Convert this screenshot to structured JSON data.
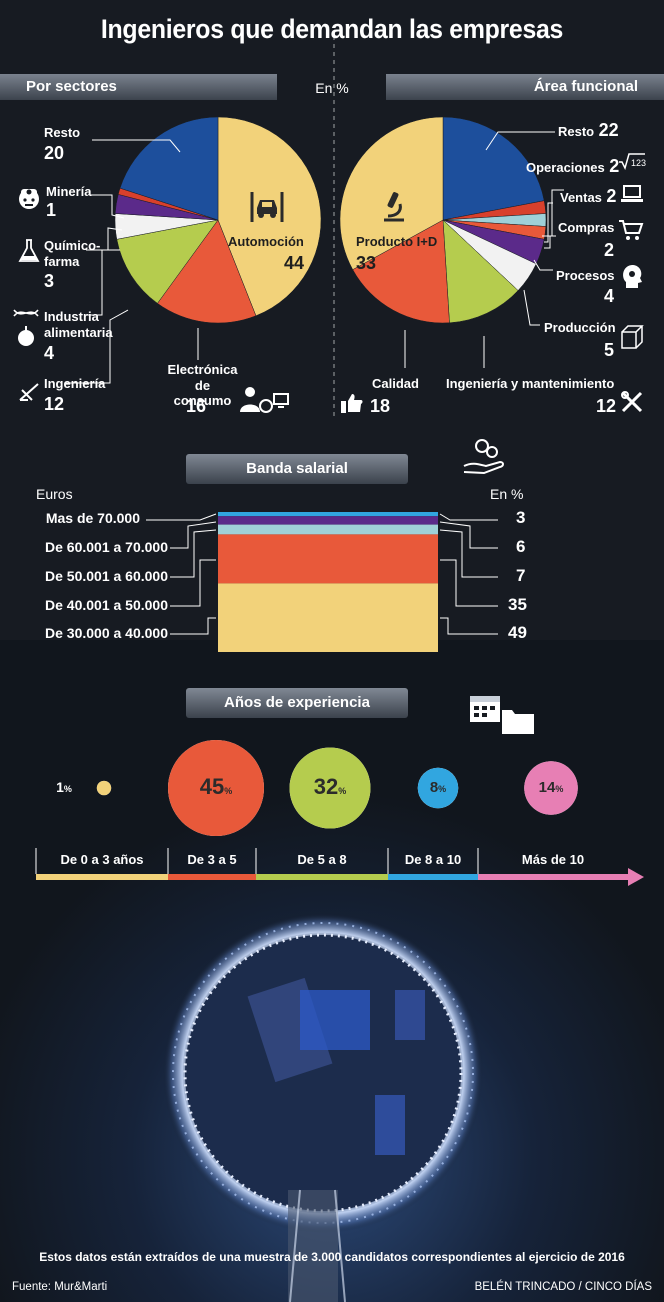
{
  "title": "Ingenieros que demandan las empresas",
  "units_label": "En %",
  "colors": {
    "blue": "#1d4f9c",
    "red": "#d8402c",
    "purple": "#5b2a8a",
    "white": "#f2f2f2",
    "green": "#b5cc4e",
    "orange": "#e8593a",
    "yellow": "#f2d27a",
    "cyan": "#9fd0d8",
    "pink": "#e77fb4",
    "brightblue": "#31a6e0"
  },
  "chart_data": [
    {
      "type": "pie",
      "title": "Por sectores",
      "units": "En %",
      "slices": [
        {
          "label": "Automoción",
          "value": 44,
          "color": "#f2d27a"
        },
        {
          "label": "Electrónica de consumo",
          "value": 16,
          "color": "#e8593a"
        },
        {
          "label": "Ingeniería",
          "value": 12,
          "color": "#b5cc4e"
        },
        {
          "label": "Industria alimentaria",
          "value": 4,
          "color": "#f2f2f2"
        },
        {
          "label": "Químico-farma",
          "value": 3,
          "color": "#5b2a8a"
        },
        {
          "label": "Minería",
          "value": 1,
          "color": "#d8402c"
        },
        {
          "label": "Resto",
          "value": 20,
          "color": "#1d4f9c"
        }
      ]
    },
    {
      "type": "pie",
      "title": "Área funcional",
      "units": "En %",
      "slices": [
        {
          "label": "Resto",
          "value": 22,
          "color": "#1d4f9c"
        },
        {
          "label": "Operaciones",
          "value": 2,
          "color": "#d8402c"
        },
        {
          "label": "Ventas",
          "value": 2,
          "color": "#9fd0d8"
        },
        {
          "label": "Compras",
          "value": 2,
          "color": "#e8593a"
        },
        {
          "label": "Procesos",
          "value": 4,
          "color": "#5b2a8a"
        },
        {
          "label": "Producción",
          "value": 5,
          "color": "#f2f2f2"
        },
        {
          "label": "Ingeniería y mantenimiento",
          "value": 12,
          "color": "#b5cc4e"
        },
        {
          "label": "Calidad",
          "value": 18,
          "color": "#e8593a"
        },
        {
          "label": "Producto I+D",
          "value": 33,
          "color": "#f2d27a"
        }
      ]
    },
    {
      "type": "bar",
      "title": "Banda salarial",
      "xlabel": "Euros",
      "ylabel": "En %",
      "categories": [
        "Mas de 70.000",
        "De 60.001 a 70.000",
        "De 50.001 a 60.000",
        "De 40.001 a 50.000",
        "De 30.000 a 40.000"
      ],
      "values": [
        3,
        6,
        7,
        35,
        49
      ],
      "colors": [
        "#31a6e0",
        "#5b2a8a",
        "#9fd0d8",
        "#e8593a",
        "#f2d27a"
      ]
    },
    {
      "type": "bubble",
      "title": "Años de experiencia",
      "categories": [
        "De 0 a 3 años",
        "De 3 a 5",
        "De 5 a 8",
        "De 8 a 10",
        "Más de 10"
      ],
      "values": [
        1,
        45,
        32,
        8,
        14
      ],
      "colors": [
        "#f2d27a",
        "#e8593a",
        "#b5cc4e",
        "#31a6e0",
        "#e77fb4"
      ]
    }
  ],
  "left_pie": {
    "header": "Por sectores",
    "resto": {
      "label": "Resto",
      "value": "20"
    },
    "mineria": {
      "label": "Minería",
      "value": "1"
    },
    "quimico_1": "Químico-",
    "quimico_2": "farma",
    "quimico_value": "3",
    "industria_1": "Industria",
    "industria_2": "alimentaria",
    "industria_value": "4",
    "ingenieria": {
      "label": "Ingeniería",
      "value": "12"
    },
    "electronica_1": "Electrónica",
    "electronica_2": "de consumo",
    "electronica_value": "16",
    "automocion": {
      "label": "Automoción",
      "value": "44"
    }
  },
  "right_pie": {
    "header": "Área funcional",
    "resto": {
      "label": "Resto",
      "value": "22"
    },
    "operaciones": {
      "label": "Operaciones",
      "value": "2"
    },
    "ventas": {
      "label": "Ventas",
      "value": "2"
    },
    "compras": {
      "label": "Compras",
      "value": "2"
    },
    "procesos": {
      "label": "Procesos",
      "value": "4"
    },
    "produccion": {
      "label": "Producción",
      "value": "5"
    },
    "ingenieria": {
      "label": "Ingeniería y mantenimiento",
      "value": "12"
    },
    "calidad": {
      "label": "Calidad",
      "value": "18"
    },
    "producto": {
      "label": "Producto I+D",
      "value": "33"
    }
  },
  "salary": {
    "header": "Banda salarial",
    "euros_label": "Euros",
    "pct_label": "En %",
    "rows": [
      {
        "label": "Mas de 70.000",
        "value": "3"
      },
      {
        "label": "De 60.001 a 70.000",
        "value": "6"
      },
      {
        "label": "De 50.001 a 60.000",
        "value": "7"
      },
      {
        "label": "De 40.001 a 50.000",
        "value": "35"
      },
      {
        "label": "De 30.000 a 40.000",
        "value": "49"
      }
    ]
  },
  "experience": {
    "header": "Años de experiencia",
    "pct_sign": "%",
    "items": [
      {
        "label": "De 0 a 3 años",
        "value": "1"
      },
      {
        "label": "De 3 a 5",
        "value": "45"
      },
      {
        "label": "De 5 a 8",
        "value": "32"
      },
      {
        "label": "De 8 a 10",
        "value": "8"
      },
      {
        "label": "Más de 10",
        "value": "14"
      }
    ]
  },
  "footnote": "Estos datos están extraídos de una muestra de 3.000 candidatos correspondientes al ejercicio de 2016",
  "source": "Fuente:  Mur&Marti",
  "credit": "BELÉN TRINCADO / CINCO DÍAS",
  "icons": [
    "car-lift-icon",
    "miner-icon",
    "flask-icon",
    "dna-apple-icon",
    "engineering-pencil-icon",
    "electronics-icon",
    "microscope-icon",
    "sqrt-icon",
    "laptop-icon",
    "cart-icon",
    "head-bulb-icon",
    "cube-icon",
    "thumbs-up-icon",
    "tools-icon",
    "money-hand-icon",
    "calendar-folder-icon"
  ]
}
